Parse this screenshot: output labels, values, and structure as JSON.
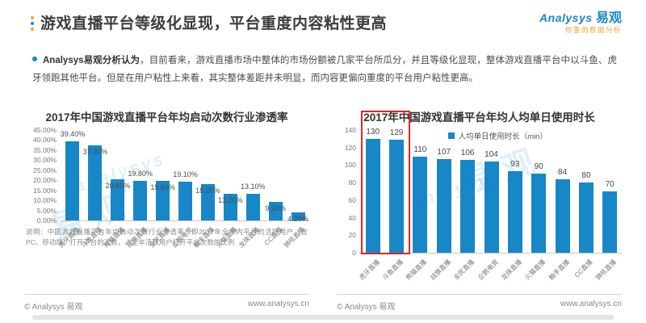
{
  "header": {
    "title": "游戏直播平台等级化显现，平台重度内容粘性更高",
    "logo_en": "Analysys",
    "logo_cn": "易观",
    "logo_tagline": "你要的数据分析"
  },
  "summary": {
    "lead": "Analysys易观分析认为",
    "body": "，目前看来，游戏直播市场中整体的市场份额被几家平台所瓜分，并且等级化显现，整体游戏直播平台中以斗鱼、虎牙领跑其他平台。但是在用户粘性上来看，其实整体差距并未明显，而内容更偏向重度的平台用户粘性更高。"
  },
  "footer": {
    "copyright": "© Analysys 易观",
    "website": "www.analysys.cn"
  },
  "watermark": {
    "cn": "易观",
    "en": "analysys"
  },
  "colors": {
    "bar": "#1787c8",
    "accent_blue": "#1787c8",
    "accent_orange": "#f6a42d",
    "highlight_red": "#e2261f"
  },
  "chart_data": [
    {
      "type": "bar",
      "title": "2017年中国游戏直播平台年均启动次数行业渗透率",
      "categories": [
        "虎牙直播",
        "斗鱼直播",
        "熊猫直播",
        "战旗直播",
        "全民直播",
        "企鹅电竞",
        "触手直播",
        "火猫直播",
        "龙珠直播",
        "CC直播",
        "狮吼直播"
      ],
      "values": [
        39.4,
        37.2,
        20.6,
        19.8,
        19.6,
        19.1,
        18.2,
        13.2,
        13.1,
        9.2,
        4.2
      ],
      "value_labels": [
        "39.40%",
        "37.20%",
        "20.60%",
        "19.80%",
        "19.60%",
        "19.10%",
        "18.20%",
        "13.20%",
        "13.10%",
        "9.20%",
        "4.20%"
      ],
      "ylim": [
        0,
        45
      ],
      "ytick_step": 5,
      "ytick_labels": [
        "45.00%",
        "40.00%",
        "35.00%",
        "30.00%",
        "25.00%",
        "20.00%",
        "15.00%",
        "10.00%",
        "5.00%",
        "0.00%"
      ],
      "grid": false,
      "note": "说明：中国游戏直播平台年均启动次数行业渗透率：即2017年全年内平台的活跃用户（含PC、移动端）打开平台的次数，占全年活跃用户打开平台次数的比例"
    },
    {
      "type": "bar",
      "title": "2017年中国游戏直播平台年均人均单日使用时长",
      "legend": "人均单日使用时长（min）",
      "legend_position": "top",
      "categories": [
        "虎牙直播",
        "斗鱼直播",
        "熊猫直播",
        "战旗直播",
        "全民直播",
        "企鹅电竞",
        "龙珠直播",
        "火猫直播",
        "触手直播",
        "CC直播",
        "狮吼直播"
      ],
      "values": [
        130,
        129,
        110,
        107,
        106,
        104,
        93,
        90,
        84,
        80,
        70
      ],
      "value_labels": [
        "130",
        "129",
        "110",
        "107",
        "106",
        "104",
        "93",
        "90",
        "84",
        "80",
        "70"
      ],
      "ylim": [
        0,
        140
      ],
      "ytick_step": 20,
      "ytick_labels": [
        "140",
        "120",
        "100",
        "80",
        "60",
        "40",
        "20",
        "0"
      ],
      "grid": false,
      "highlight": {
        "indices": [
          0,
          1
        ],
        "color": "#e2261f"
      }
    }
  ]
}
